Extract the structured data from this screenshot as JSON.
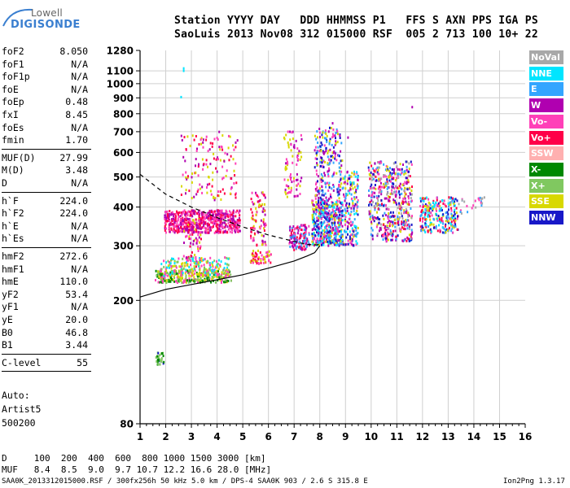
{
  "logo": {
    "line1": "Lowell",
    "line2": "DIGISONDE"
  },
  "header": {
    "labels": "Station YYYY DAY   DDD HHMMSS P1   FFS S AXN PPS IGA PS",
    "values": "SaoLuis 2013 Nov08 312 015000 RSF  005 2 713 100 10+ 22"
  },
  "params": [
    {
      "label": "foF2",
      "value": "8.050"
    },
    {
      "label": "foF1",
      "value": "N/A"
    },
    {
      "label": "foF1p",
      "value": "N/A"
    },
    {
      "label": "foE",
      "value": "N/A"
    },
    {
      "label": "foEp",
      "value": "0.48"
    },
    {
      "label": "fxI",
      "value": "8.45"
    },
    {
      "label": "foEs",
      "value": "N/A"
    },
    {
      "label": "fmin",
      "value": "1.70"
    },
    {
      "label": "MUF(D)",
      "value": "27.99"
    },
    {
      "label": "M(D)",
      "value": "3.48"
    },
    {
      "label": "D",
      "value": "N/A"
    },
    {
      "label": "h`F",
      "value": "224.0"
    },
    {
      "label": "h`F2",
      "value": "224.0"
    },
    {
      "label": "h`E",
      "value": "N/A"
    },
    {
      "label": "h`Es",
      "value": "N/A"
    },
    {
      "label": "hmF2",
      "value": "272.6"
    },
    {
      "label": "hmF1",
      "value": "N/A"
    },
    {
      "label": "hmE",
      "value": "110.0"
    },
    {
      "label": "yF2",
      "value": "53.4"
    },
    {
      "label": "yF1",
      "value": "N/A"
    },
    {
      "label": "yE",
      "value": "20.0"
    },
    {
      "label": "B0",
      "value": "46.8"
    },
    {
      "label": "B1",
      "value": "3.44"
    },
    {
      "label": "C-level",
      "value": "55"
    }
  ],
  "auto": {
    "line1": "Auto:",
    "line2": "Artist5",
    "line3": "500200"
  },
  "footer": {
    "d_row": "D     100  200  400  600  800 1000 1500 3000 [km]",
    "muf_row": "MUF   8.4  8.5  9.0  9.7 10.7 12.2 16.6 28.0 [MHz]",
    "info": "SAA0K_2013312015000.RSF / 300fx256h 50 kHz 5.0 km / DPS-4 SAA0K 903 / 2.6 S 315.8 E",
    "version": "Ion2Png 1.3.17"
  },
  "legend": [
    {
      "label": "NoVal",
      "color": "#a8a8a8"
    },
    {
      "label": "NNE",
      "color": "#00e5ff"
    },
    {
      "label": "E",
      "color": "#33a5ff"
    },
    {
      "label": "W",
      "color": "#b000b0"
    },
    {
      "label": "Vo-",
      "color": "#ff40b8"
    },
    {
      "label": "Vo+",
      "color": "#ff0048"
    },
    {
      "label": "SSW",
      "color": "#ffb0b0"
    },
    {
      "label": "X-",
      "color": "#008800"
    },
    {
      "label": "X+",
      "color": "#80c860"
    },
    {
      "label": "SSE",
      "color": "#d8d800"
    },
    {
      "label": "NNW",
      "color": "#1818c8"
    }
  ],
  "chart_data": {
    "type": "scatter",
    "xlim": [
      1,
      16
    ],
    "ylim": [
      80,
      1280
    ],
    "x_ticks": [
      1,
      2,
      3,
      4,
      5,
      6,
      7,
      8,
      9,
      10,
      11,
      12,
      13,
      14,
      15,
      16
    ],
    "y_ticks": [
      80,
      200,
      300,
      400,
      500,
      600,
      700,
      800,
      900,
      1000,
      1100,
      1280
    ],
    "y_scale": "log",
    "grid": true,
    "legend_position": "right",
    "clusters": [
      {
        "x": [
          1.95,
          4.9
        ],
        "y": [
          330,
          390
        ],
        "colors": [
          "#b000b0",
          "#ff40b8",
          "#ff0048"
        ],
        "n": 600
      },
      {
        "x": [
          2.7,
          3.4
        ],
        "y": [
          250,
          370
        ],
        "colors": [
          "#b000b0",
          "#ff40b8",
          "#ff0048",
          "#d8d800"
        ],
        "n": 80
      },
      {
        "x": [
          2.6,
          4.8
        ],
        "y": [
          420,
          700
        ],
        "colors": [
          "#b000b0",
          "#ff40b8",
          "#d8d800",
          "#ff0048"
        ],
        "n": 140
      },
      {
        "x": [
          1.6,
          4.6
        ],
        "y": [
          228,
          250
        ],
        "colors": [
          "#ff40b8",
          "#d8d800",
          "#80c860",
          "#008800"
        ],
        "n": 300
      },
      {
        "x": [
          1.8,
          4.5
        ],
        "y": [
          240,
          275
        ],
        "colors": [
          "#d8d800",
          "#80c860",
          "#ff40b8",
          "#00e5ff"
        ],
        "n": 180
      },
      {
        "x": [
          5.3,
          5.9
        ],
        "y": [
          300,
          450
        ],
        "colors": [
          "#b000b0",
          "#ff40b8",
          "#ff0048",
          "#d8d800"
        ],
        "n": 90
      },
      {
        "x": [
          5.3,
          6.1
        ],
        "y": [
          260,
          290
        ],
        "colors": [
          "#ff40b8",
          "#ff0048",
          "#d8d800"
        ],
        "n": 60
      },
      {
        "x": [
          6.8,
          7.6
        ],
        "y": [
          290,
          350
        ],
        "colors": [
          "#ff40b8",
          "#ff0048",
          "#b000b0",
          "#33a5ff"
        ],
        "n": 140
      },
      {
        "x": [
          6.6,
          7.3
        ],
        "y": [
          430,
          700
        ],
        "colors": [
          "#d8d800",
          "#ff40b8",
          "#b000b0"
        ],
        "n": 80
      },
      {
        "x": [
          7.7,
          8.9
        ],
        "y": [
          300,
          420
        ],
        "colors": [
          "#33a5ff",
          "#00e5ff",
          "#b000b0",
          "#1818c8",
          "#ff40b8",
          "#d8d800"
        ],
        "n": 500
      },
      {
        "x": [
          7.8,
          8.9
        ],
        "y": [
          420,
          720
        ],
        "colors": [
          "#33a5ff",
          "#b000b0",
          "#d8d800",
          "#ff40b8",
          "#1818c8"
        ],
        "n": 220
      },
      {
        "x": [
          8.9,
          9.5
        ],
        "y": [
          300,
          520
        ],
        "colors": [
          "#33a5ff",
          "#1818c8",
          "#00e5ff",
          "#d8d800",
          "#ff40b8",
          "#b000b0"
        ],
        "n": 180
      },
      {
        "x": [
          9.9,
          11.6
        ],
        "y": [
          310,
          560
        ],
        "colors": [
          "#ff40b8",
          "#33a5ff",
          "#ff0048",
          "#d8d800",
          "#b000b0",
          "#a8a8a8",
          "#1818c8"
        ],
        "n": 500
      },
      {
        "x": [
          11.9,
          13.4
        ],
        "y": [
          330,
          430
        ],
        "colors": [
          "#33a5ff",
          "#00e5ff",
          "#ff40b8",
          "#d8d800",
          "#1818c8",
          "#ff0048"
        ],
        "n": 250
      },
      {
        "x": [
          13.4,
          14.6
        ],
        "y": [
          380,
          430
        ],
        "colors": [
          "#a8a8a8",
          "#ff40b8",
          "#33a5ff"
        ],
        "n": 25
      },
      {
        "x": [
          1.6,
          1.95
        ],
        "y": [
          124,
          136
        ],
        "colors": [
          "#1818c8",
          "#008800",
          "#80c860"
        ],
        "n": 30
      }
    ],
    "profile_solid": {
      "x": [
        1.0,
        2.0,
        3.0,
        4.0,
        5.0,
        6.0,
        7.0,
        7.5,
        7.8,
        8.0
      ],
      "y": [
        205,
        217,
        225,
        233,
        242,
        254,
        268,
        278,
        285,
        300
      ]
    },
    "profile_dashed": {
      "x": [
        1.0,
        2.0,
        3.0,
        4.0,
        5.0,
        6.0,
        7.0,
        7.5,
        7.9,
        8.05
      ],
      "y": [
        510,
        440,
        400,
        370,
        345,
        325,
        310,
        303,
        302,
        305
      ]
    }
  }
}
